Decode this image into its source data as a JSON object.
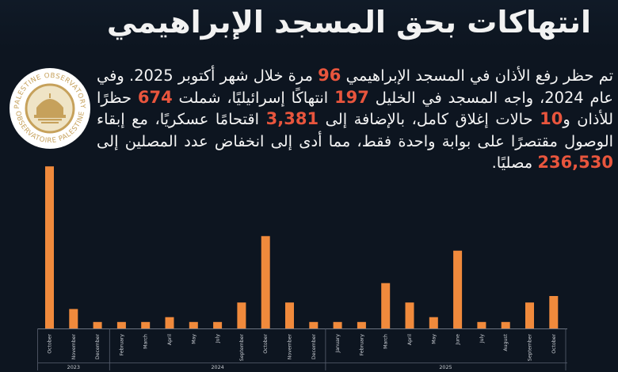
{
  "header": {
    "title": "انتهاكات بحق المسجد الإبراهيمي"
  },
  "logo": {
    "ring_top_text": "PALESTINE OBSERVATORY",
    "ring_bottom_text": "OBSERVATOIRE PALESTINE",
    "colors": {
      "ring": "#c6a15b",
      "inner": "#efe4c6"
    }
  },
  "paragraph": {
    "s1": "تم حظر رفع الأذان في المسجد الإبراهيمي ",
    "n1": "96",
    "s2": " مرة خلال شهر أكتوبر 2025. وفي عام 2024، واجه المسجد في الخليل ",
    "n2": "197",
    "s3": " انتهاكًا إسرائيليًا، شملت ",
    "n3": "674",
    "s4": " حظرًا للأذان و",
    "n4": "10",
    "s5": " حالات إغلاق كامل، بالإضافة إلى ",
    "n5": "3,381",
    "s6": " اقتحامًا عسكريًا، مع إبقاء الوصول مقتصرًا على بوابة واحدة فقط، مما أدى إلى انخفاض عدد المصلين إلى ",
    "n6": "236,530",
    "s7": " مصليًا."
  },
  "colors": {
    "background": "#0d1520",
    "bar": "#f08a3c",
    "highlight": "#e8553d",
    "axis_text": "#c8ccd2"
  },
  "chart_data": {
    "type": "bar",
    "categories": [
      "October",
      "November",
      "December",
      "February",
      "March",
      "April",
      "May",
      "July",
      "September",
      "October",
      "November",
      "December",
      "January",
      "February",
      "March",
      "April",
      "May",
      "June",
      "July",
      "August",
      "September",
      "October"
    ],
    "groups": [
      {
        "label": "2023",
        "count": 3
      },
      {
        "label": "2024",
        "count": 9
      },
      {
        "label": "2025",
        "count": 10
      }
    ],
    "values": [
      100,
      12,
      4,
      4,
      4,
      7,
      4,
      4,
      16,
      57,
      16,
      4,
      4,
      4,
      28,
      16,
      7,
      48,
      4,
      4,
      16,
      20
    ],
    "ylim": [
      0,
      105
    ],
    "grid": false,
    "legend": "none",
    "title": "",
    "xlabel": "",
    "ylabel": ""
  }
}
